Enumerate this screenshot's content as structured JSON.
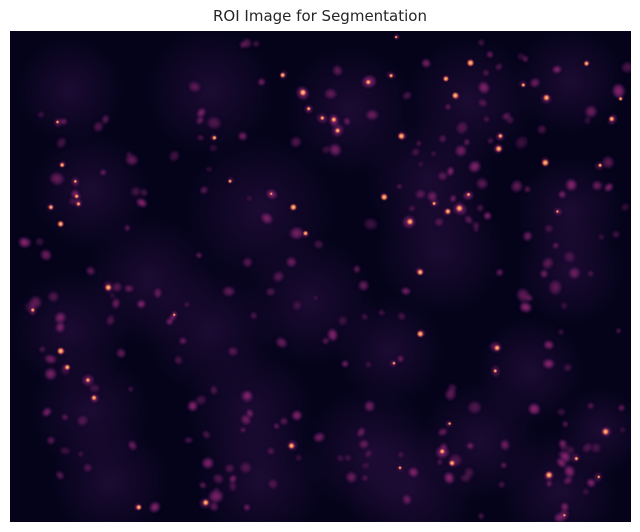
{
  "figure": {
    "title": "ROI Image for Segmentation"
  },
  "image": {
    "subject": "fluorescence microscopy of nuclei",
    "colormap": "magma",
    "colors": {
      "background": "#04031a",
      "dim": "#2a0f3e",
      "mid": "#7a1f6e",
      "bright": "#c8306a",
      "hot": "#ff9b4a",
      "peak": "#ffe2a8"
    }
  }
}
